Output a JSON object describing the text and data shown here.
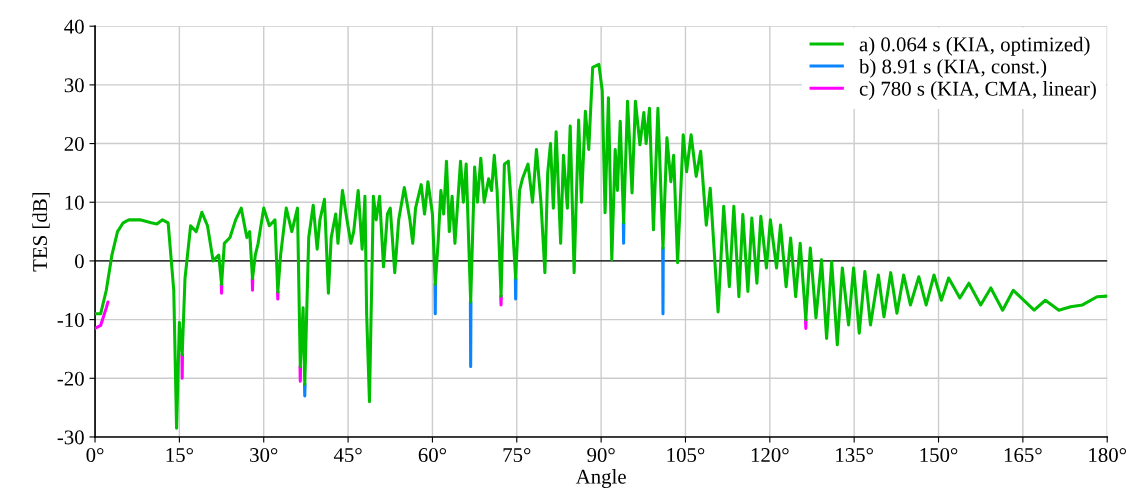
{
  "chart_data": {
    "type": "line",
    "xlabel": "Angle",
    "ylabel": "TES [dB]",
    "xlim": [
      0,
      180
    ],
    "xticks": [
      {
        "value": 0,
        "label": "0°"
      },
      {
        "value": 15,
        "label": "15°"
      },
      {
        "value": 30,
        "label": "30°"
      },
      {
        "value": 45,
        "label": "45°"
      },
      {
        "value": 60,
        "label": "60°"
      },
      {
        "value": 75,
        "label": "75°"
      },
      {
        "value": 90,
        "label": "90°"
      },
      {
        "value": 105,
        "label": "105°"
      },
      {
        "value": 120,
        "label": "120°"
      },
      {
        "value": 135,
        "label": "135°"
      },
      {
        "value": 150,
        "label": "150°"
      },
      {
        "value": 165,
        "label": "165°"
      },
      {
        "value": 180,
        "label": "180°"
      }
    ],
    "ylim": [
      -30,
      40
    ],
    "yticks": [
      -30,
      -20,
      -10,
      0,
      10,
      20,
      30,
      40
    ],
    "grid": true,
    "legend": "top right",
    "line_style": "solid",
    "marker": "none",
    "ref_lines": [
      {
        "axis": "y",
        "value": 0,
        "color": "#000000"
      }
    ],
    "series": [
      {
        "name": "a) 0.064 s (KIA, optimized)",
        "color": "#00bf00",
        "x": [
          0,
          1,
          2,
          3,
          4,
          5,
          6,
          8,
          10,
          11,
          12,
          13,
          14,
          14.5,
          15,
          15.5,
          16,
          17,
          18,
          19,
          20,
          21,
          22,
          22.5,
          23,
          24,
          25,
          26,
          27,
          27.5,
          28,
          28.5,
          29,
          30,
          31,
          32,
          32.5,
          33,
          34,
          35,
          36,
          36.5,
          37,
          37.3,
          38,
          38.8,
          39.5,
          40,
          40.8,
          41.5,
          42,
          42.8,
          43.2,
          44,
          44.8,
          45.5,
          46,
          46.8,
          47.5,
          48,
          48.3,
          48.8,
          49.5,
          50,
          50.6,
          51.3,
          52,
          52.5,
          53.3,
          54,
          55,
          56,
          56.5,
          57,
          58,
          58.6,
          59.2,
          60,
          60.5,
          61,
          61.5,
          62,
          62.5,
          63,
          63.5,
          64,
          65,
          65.5,
          66,
          66.8,
          67.5,
          68,
          68.6,
          69.2,
          70,
          70.5,
          71,
          71.5,
          72.2,
          72.8,
          73.5,
          74,
          74.8,
          75.5,
          76,
          77,
          77.8,
          78.5,
          79.3,
          80,
          80.5,
          81,
          81.5,
          82,
          82.8,
          83.3,
          84,
          84.5,
          85.2,
          86,
          86.5,
          87.2,
          87.8,
          88.5,
          89.6,
          90.2,
          90.7,
          91.3,
          91.9,
          92.5,
          92.9,
          93.4,
          94,
          94.7,
          95.5,
          96.1,
          96.9,
          97.6,
          98,
          98.6,
          99.3,
          100.1,
          101,
          101.7,
          102.4,
          102.9,
          103.6,
          104.6,
          105.2,
          106,
          106.9,
          107.7,
          108.7,
          109.4,
          110.8,
          111.8,
          112.8,
          113.6,
          114.5,
          115.2,
          116.1,
          116.8,
          117.7,
          118.4,
          119.4,
          120.1,
          121.2,
          121.9,
          122.9,
          123.7,
          124.6,
          125.4,
          126.4,
          127.2,
          128.2,
          129.2,
          130.1,
          131,
          132,
          132.9,
          134,
          134.9,
          135.9,
          136.9,
          137.9,
          139.3,
          140.3,
          141.5,
          142.6,
          143.8,
          145,
          146.5,
          147.8,
          149.2,
          150.5,
          151.8,
          153.8,
          155.4,
          157.5,
          159.3,
          161.4,
          163.3,
          167,
          169,
          171.4,
          173.5,
          175.6,
          178.2,
          180
        ],
        "values": [
          -9,
          -9,
          -5,
          1,
          5,
          6.5,
          7,
          7,
          6.5,
          6.3,
          7,
          6.5,
          -5,
          -28.5,
          -10.5,
          -16,
          -3,
          6,
          5,
          8.3,
          6,
          0,
          1,
          -4,
          3,
          4,
          7,
          9,
          4,
          5,
          -3,
          1,
          3,
          9,
          6,
          7,
          -5.3,
          1,
          9,
          5,
          9,
          -18,
          -8,
          -21,
          4,
          9.5,
          2,
          7,
          10.5,
          -5.5,
          4,
          8,
          3,
          12,
          7,
          3,
          5,
          12,
          2,
          11,
          -9,
          -24,
          11,
          7,
          11,
          -1,
          8,
          9,
          -2,
          7,
          12.5,
          7,
          3,
          9,
          13,
          8,
          13.5,
          8,
          -4,
          3,
          12,
          8,
          17,
          5,
          11,
          3,
          17,
          10,
          16.5,
          -7,
          16,
          10,
          17.5,
          10,
          14,
          12,
          18,
          12,
          -6,
          16.5,
          17,
          10,
          -3,
          12,
          14,
          16.5,
          10,
          19,
          10,
          -2,
          15,
          20,
          9,
          22,
          3,
          18,
          9,
          23,
          -2,
          24,
          10,
          25.5,
          19,
          33,
          33.5,
          29,
          8.2,
          27.8,
          0.2,
          19,
          12,
          23.8,
          6.5,
          27.2,
          11.6,
          27.2,
          19.8,
          25.3,
          20,
          26,
          5.3,
          26,
          2.2,
          21,
          13.5,
          18,
          -0.3,
          21.5,
          15.2,
          21.5,
          14.4,
          18.7,
          6.1,
          12.4,
          -8.7,
          9.3,
          -4.4,
          9.3,
          -6.1,
          7.9,
          -5.2,
          7.3,
          -3.8,
          7.6,
          -1.2,
          7,
          -1.2,
          6.1,
          -4.4,
          3.9,
          -6.1,
          3,
          -10,
          2.2,
          -9.7,
          0.2,
          -13.2,
          -0.1,
          -14.3,
          -1.2,
          -10.9,
          -1.2,
          -12.3,
          -1.8,
          -10.9,
          -2.4,
          -9.5,
          -2,
          -8.9,
          -2.4,
          -7.5,
          -2.7,
          -7.5,
          -2.4,
          -6.7,
          -2.9,
          -6.3,
          -3.8,
          -7.5,
          -4.6,
          -8.4,
          -5,
          -8.4,
          -6.7,
          -8.4,
          -7.8,
          -7.5,
          -6.1,
          -6
        ]
      },
      {
        "name": "b) 8.91 s (KIA, const.)",
        "color": "#0a84ff",
        "x": [
          37.25,
          37.3,
          37.35,
          37.4,
          60.45,
          60.5,
          60.55,
          60.6,
          66.75,
          66.8,
          66.85,
          66.9,
          74.75,
          74.8,
          74.85,
          74.9,
          93.95,
          94,
          94.05,
          94.1,
          100.95,
          101,
          101.05
        ],
        "values": [
          -21,
          -23,
          -21,
          null,
          -4,
          -9,
          -4,
          null,
          -7,
          -18,
          -7,
          null,
          -3,
          -6.5,
          -3,
          null,
          6.5,
          3,
          6.5,
          null,
          2.2,
          -9,
          2.2
        ]
      },
      {
        "name": "c) 780 s (KIA, CMA, linear)",
        "color": "#ff00ff",
        "x": [
          0,
          1,
          2,
          2.3,
          2.5,
          15.45,
          15.5,
          15.55,
          15.6,
          22.45,
          22.5,
          22.55,
          22.6,
          27.95,
          28,
          28.05,
          28.1,
          32.45,
          32.5,
          32.55,
          32.6,
          36.45,
          36.5,
          36.55,
          36.6,
          72.15,
          72.2,
          72.25,
          72.3,
          126.35,
          126.4,
          126.45
        ],
        "values": [
          -11.5,
          -11,
          -8,
          -7,
          null,
          -16,
          -20,
          -16,
          null,
          -4,
          -5.5,
          -4,
          null,
          -3,
          -5,
          -3,
          null,
          -5.3,
          -6.5,
          -5.3,
          null,
          -18,
          -20.5,
          -18,
          null,
          -6,
          -7.5,
          -6,
          null,
          -10,
          -11.5,
          -10
        ]
      }
    ]
  }
}
